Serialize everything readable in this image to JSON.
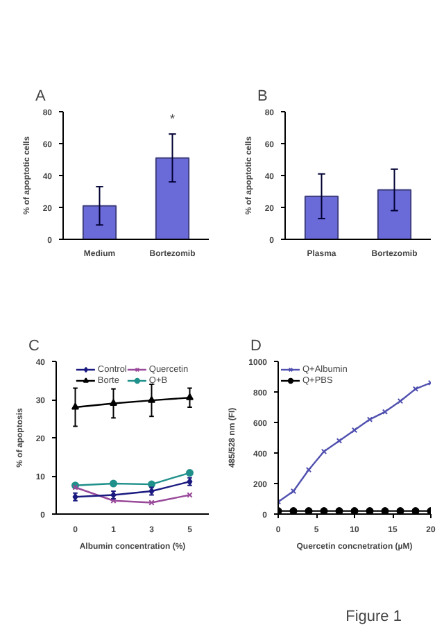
{
  "chart_data": [
    {
      "type": "bar",
      "title": "A",
      "categories": [
        "Medium",
        "Bortezomib"
      ],
      "values": [
        21,
        51
      ],
      "errors": [
        12,
        15
      ],
      "color": "#6a6ad8",
      "ylabel": "% of apoptotic cells",
      "ylim": [
        0,
        80
      ],
      "yticks": [
        0,
        20,
        40,
        60,
        80
      ],
      "grid": false,
      "annotations": [
        "*"
      ]
    },
    {
      "type": "bar",
      "title": "B",
      "categories": [
        "Plasma",
        "Bortezomib"
      ],
      "values": [
        27,
        31
      ],
      "errors": [
        14,
        13
      ],
      "color": "#6a6ad8",
      "ylabel": "% of apoptotic cells",
      "ylim": [
        0,
        80
      ],
      "yticks": [
        0,
        20,
        40,
        60,
        80
      ],
      "grid": false
    },
    {
      "type": "line",
      "title": "C",
      "categories": [
        "0",
        "1",
        "3",
        "5"
      ],
      "xlabel": "Albumin concentration (%)",
      "ylabel": "% of apoptosis",
      "ylim": [
        0,
        40
      ],
      "yticks": [
        0,
        10,
        20,
        30,
        40
      ],
      "grid": false,
      "legend": "top",
      "series": [
        {
          "name": "Control",
          "color": "#1a1a80",
          "marker": "diamond",
          "values": [
            4.5,
            5,
            6,
            8.5
          ],
          "errors": [
            1,
            1,
            1,
            1
          ]
        },
        {
          "name": "Borte",
          "color": "#000000",
          "marker": "triangle",
          "values": [
            28,
            29,
            29.8,
            30.5
          ],
          "errors": [
            5,
            3.8,
            4.2,
            2.5
          ]
        },
        {
          "name": "Quercetin",
          "color": "#9a4a9a",
          "marker": "cross",
          "values": [
            7,
            3.5,
            3,
            5
          ]
        },
        {
          "name": "Q+B",
          "color": "#20908a",
          "marker": "circle",
          "values": [
            7.5,
            8,
            7.8,
            10.8
          ]
        }
      ]
    },
    {
      "type": "line",
      "title": "D",
      "x": [
        0,
        2,
        4,
        6,
        8,
        10,
        12,
        14,
        16,
        18,
        20
      ],
      "xlabel": "Quercetin concnetration (µM)",
      "ylabel": "485/528 nm (FI)",
      "xlim": [
        0,
        20
      ],
      "xticks": [
        0,
        5,
        10,
        15,
        20
      ],
      "ylim": [
        0,
        1000
      ],
      "yticks": [
        0,
        200,
        400,
        600,
        800,
        1000
      ],
      "grid": false,
      "legend": "top left",
      "annotations": [
        "Figure 1"
      ],
      "series": [
        {
          "name": "Q+Albumin",
          "color": "#5050b0",
          "marker": "cross",
          "values": [
            80,
            150,
            290,
            410,
            480,
            550,
            620,
            670,
            740,
            820,
            860
          ]
        },
        {
          "name": "Q+PBS",
          "color": "#000000",
          "marker": "circle",
          "values": [
            20,
            20,
            20,
            20,
            20,
            20,
            20,
            20,
            20,
            20,
            20
          ]
        }
      ]
    }
  ]
}
